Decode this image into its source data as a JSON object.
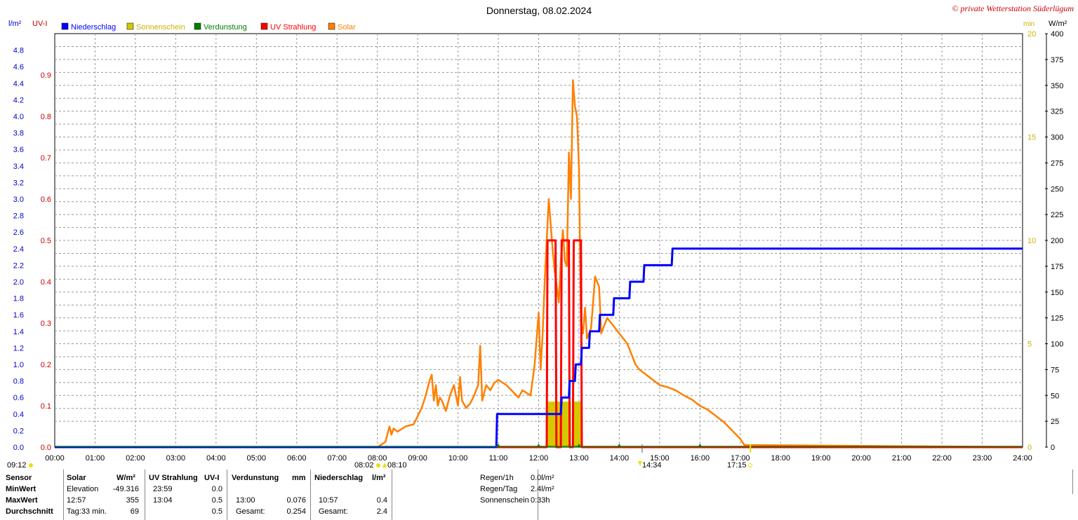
{
  "header": {
    "title": "Donnerstag, 08.02.2024",
    "copyright": "© private Wetterstation Süderlügum",
    "left_unit_1": "l/m²",
    "left_unit_2": "UV-I",
    "right_unit_1": "min",
    "right_unit_2": "W/m²"
  },
  "legend": [
    {
      "label": "Niederschlag",
      "color": "#0000ff"
    },
    {
      "label": "Sonnenschein",
      "color": "#d4c800"
    },
    {
      "label": "Verdunstung",
      "color": "#008000"
    },
    {
      "label": "UV Strahlung",
      "color": "#ff0000"
    },
    {
      "label": "Solar",
      "color": "#ff8000"
    }
  ],
  "chart_data": {
    "type": "line",
    "xlabel": "",
    "ylabel": "",
    "xlim": [
      0,
      24
    ],
    "x_ticks": [
      "00:00",
      "01:00",
      "02:00",
      "03:00",
      "04:00",
      "05:00",
      "06:00",
      "07:00",
      "08:00",
      "09:00",
      "10:00",
      "11:00",
      "12:00",
      "13:00",
      "14:00",
      "15:00",
      "16:00",
      "17:00",
      "18:00",
      "19:00",
      "20:00",
      "21:00",
      "22:00",
      "23:00",
      "24:00"
    ],
    "axes": {
      "rain": {
        "label": "l/m²",
        "range": [
          0,
          5.0
        ],
        "ticks": [
          "0.0",
          "0.2",
          "0.4",
          "0.6",
          "0.8",
          "1.0",
          "1.2",
          "1.4",
          "1.6",
          "1.8",
          "2.0",
          "2.2",
          "2.4",
          "2.6",
          "2.8",
          "3.0",
          "3.2",
          "3.4",
          "3.6",
          "3.8",
          "4.0",
          "4.2",
          "4.4",
          "4.6",
          "4.8"
        ],
        "color": "#0000cc"
      },
      "uv": {
        "label": "UV-I",
        "range": [
          0,
          1.0
        ],
        "ticks": [
          "0.0",
          "0.1",
          "0.2",
          "0.3",
          "0.4",
          "0.5",
          "0.6",
          "0.7",
          "0.8",
          "0.9"
        ],
        "color": "#cc0000"
      },
      "sun": {
        "label": "min",
        "range": [
          0,
          20
        ],
        "ticks": [
          "0",
          "5",
          "10",
          "15",
          "20"
        ],
        "color": "#c8b400"
      },
      "solar": {
        "label": "W/m²",
        "range": [
          0,
          400
        ],
        "ticks": [
          "0",
          "25",
          "50",
          "75",
          "100",
          "125",
          "150",
          "175",
          "200",
          "225",
          "250",
          "275",
          "300",
          "325",
          "350",
          "375",
          "400"
        ],
        "color": "#000000"
      }
    },
    "series": [
      {
        "name": "Niederschlag",
        "axis": "rain",
        "color": "#0000ff",
        "x": [
          0,
          10.95,
          10.97,
          12.55,
          12.57,
          12.75,
          12.77,
          12.9,
          12.92,
          13.05,
          13.07,
          13.25,
          13.27,
          13.5,
          13.52,
          13.85,
          13.87,
          14.25,
          14.27,
          14.6,
          14.62,
          15.3,
          15.32,
          24
        ],
        "values": [
          0,
          0,
          0.4,
          0.4,
          0.6,
          0.6,
          0.8,
          0.8,
          1.0,
          1.0,
          1.2,
          1.2,
          1.4,
          1.4,
          1.6,
          1.6,
          1.8,
          1.8,
          2.0,
          2.0,
          2.2,
          2.2,
          2.4,
          2.4
        ]
      },
      {
        "name": "UV Strahlung",
        "axis": "uv",
        "color": "#ff0000",
        "x": [
          0,
          12.2,
          12.22,
          12.42,
          12.44,
          12.55,
          12.57,
          12.75,
          12.77,
          12.85,
          12.87,
          13.05,
          13.07,
          24
        ],
        "values": [
          0,
          0,
          0.5,
          0.5,
          0,
          0,
          0.5,
          0.5,
          0,
          0,
          0.5,
          0.5,
          0,
          0
        ]
      },
      {
        "name": "Sonnenschein",
        "axis": "sun",
        "color": "#d4c800",
        "bars": [
          {
            "from": 12.2,
            "to": 12.8,
            "value": 2.2
          },
          {
            "from": 12.85,
            "to": 13.05,
            "value": 2.2
          }
        ]
      },
      {
        "name": "Solar",
        "axis": "solar",
        "color": "#ff8000",
        "x": [
          0,
          8.0,
          8.2,
          8.3,
          8.35,
          8.4,
          8.5,
          8.7,
          8.9,
          9.0,
          9.1,
          9.2,
          9.3,
          9.35,
          9.4,
          9.45,
          9.5,
          9.55,
          9.6,
          9.7,
          9.8,
          9.9,
          10.0,
          10.05,
          10.1,
          10.2,
          10.3,
          10.4,
          10.5,
          10.55,
          10.6,
          10.7,
          10.8,
          10.9,
          11.0,
          11.2,
          11.4,
          11.5,
          11.6,
          11.8,
          11.9,
          12.0,
          12.05,
          12.1,
          12.15,
          12.2,
          12.25,
          12.3,
          12.35,
          12.4,
          12.45,
          12.5,
          12.55,
          12.6,
          12.65,
          12.7,
          12.75,
          12.8,
          12.85,
          12.9,
          12.95,
          13.0,
          13.05,
          13.1,
          13.15,
          13.2,
          13.3,
          13.4,
          13.5,
          13.55,
          13.6,
          13.7,
          13.8,
          13.9,
          14.0,
          14.1,
          14.2,
          14.3,
          14.4,
          14.5,
          14.6,
          14.8,
          15.0,
          15.2,
          15.4,
          15.6,
          15.8,
          16.0,
          16.2,
          16.4,
          16.6,
          16.8,
          17.0,
          17.1,
          24
        ],
        "values": [
          0,
          0,
          5,
          20,
          12,
          18,
          15,
          20,
          22,
          30,
          38,
          50,
          65,
          70,
          45,
          60,
          40,
          48,
          45,
          35,
          50,
          60,
          40,
          68,
          45,
          38,
          42,
          50,
          60,
          98,
          45,
          60,
          55,
          62,
          65,
          60,
          52,
          48,
          55,
          50,
          80,
          130,
          75,
          110,
          160,
          200,
          240,
          215,
          190,
          170,
          155,
          140,
          180,
          210,
          180,
          175,
          285,
          240,
          355,
          330,
          320,
          270,
          120,
          110,
          135,
          105,
          115,
          165,
          155,
          110,
          115,
          125,
          120,
          115,
          110,
          105,
          100,
          90,
          80,
          75,
          72,
          66,
          60,
          58,
          55,
          50,
          46,
          40,
          36,
          30,
          24,
          16,
          8,
          2,
          0
        ]
      }
    ],
    "markers": {
      "sunrise": "08:02",
      "dawn_end": "08:10",
      "sun_max": "14:34",
      "sunset": "17:15",
      "left_time": "09:12"
    }
  },
  "table": {
    "headers": [
      "Sensor",
      "Solar",
      "W/m²",
      "UV Strahlung",
      "UV-I",
      "Verdunstung",
      "mm",
      "Niederschlag",
      "l/m²"
    ],
    "rows": [
      {
        "label": "MinWert",
        "solar_a": "Elevation",
        "solar_b": "-49.316",
        "uv_a": "23:59",
        "uv_b": "0.0",
        "ev_a": "",
        "ev_b": "",
        "ns_a": "",
        "ns_b": ""
      },
      {
        "label": "MaxWert",
        "solar_a": "12:57",
        "solar_b": "355",
        "uv_a": "13:04",
        "uv_b": "0.5",
        "ev_a": "13:00",
        "ev_b": "0.076",
        "ns_a": "10:57",
        "ns_b": "0.4"
      },
      {
        "label": "Durchschnitt",
        "solar_a": "Tag:33 min.",
        "solar_b": "69",
        "uv_a": "",
        "uv_b": "0.5",
        "ev_a": "Gesamt:",
        "ev_b": "0.254",
        "ns_a": "Gesamt:",
        "ns_b": "2.4"
      }
    ]
  },
  "summary": [
    {
      "label": "Regen/1h",
      "value": "0.0l/m²"
    },
    {
      "label": "Regen/Tag",
      "value": "2.4l/m²"
    },
    {
      "label": "Sonnenschein",
      "value": "0:33h"
    }
  ]
}
